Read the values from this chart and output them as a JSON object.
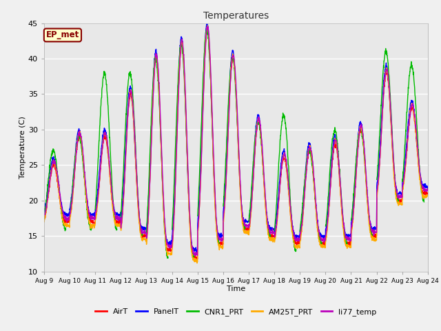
{
  "title": "Temperatures",
  "xlabel": "Time",
  "ylabel": "Temperature (C)",
  "ylim": [
    10,
    45
  ],
  "background_color": "#f0f0f0",
  "plot_bg_color": "#e8e8e8",
  "annotation_text": "EP_met",
  "annotation_bg": "#ffffcc",
  "annotation_border": "#880000",
  "xtick_labels": [
    "Aug 9",
    "Aug 10",
    "Aug 11",
    "Aug 12",
    "Aug 13",
    "Aug 14",
    "Aug 15",
    "Aug 16",
    "Aug 17",
    "Aug 18",
    "Aug 19",
    "Aug 20",
    "Aug 21",
    "Aug 22",
    "Aug 23",
    "Aug 24"
  ],
  "ytick_labels": [
    10,
    15,
    20,
    25,
    30,
    35,
    40,
    45
  ],
  "series": {
    "AirT": {
      "color": "#ff0000",
      "lw": 1.0
    },
    "PanelT": {
      "color": "#0000ff",
      "lw": 1.0
    },
    "CNR1_PRT": {
      "color": "#00bb00",
      "lw": 1.0
    },
    "AM25T_PRT": {
      "color": "#ffaa00",
      "lw": 1.0
    },
    "li77_temp": {
      "color": "#bb00bb",
      "lw": 1.0
    }
  },
  "legend_entries": [
    "AirT",
    "PanelT",
    "CNR1_PRT",
    "AM25T_PRT",
    "li77_temp"
  ],
  "day_mins_air": [
    17,
    17,
    17,
    15,
    13,
    12,
    14,
    16,
    15,
    14,
    14,
    14,
    15,
    20,
    21
  ],
  "day_maxs_air": [
    25,
    29,
    29,
    35,
    40,
    42,
    44,
    40,
    31,
    26,
    27,
    28,
    30,
    38,
    33
  ],
  "day_mins_cnr": [
    16,
    16,
    16,
    15,
    12,
    12,
    14,
    16,
    15,
    13,
    14,
    14,
    15,
    20,
    20
  ],
  "day_maxs_cnr": [
    27,
    29,
    38,
    38,
    40,
    42,
    44,
    40,
    31,
    32,
    27,
    30,
    30,
    41,
    39
  ],
  "peak_sharpness": 3.0,
  "pts_per_day": 144,
  "days": 15
}
